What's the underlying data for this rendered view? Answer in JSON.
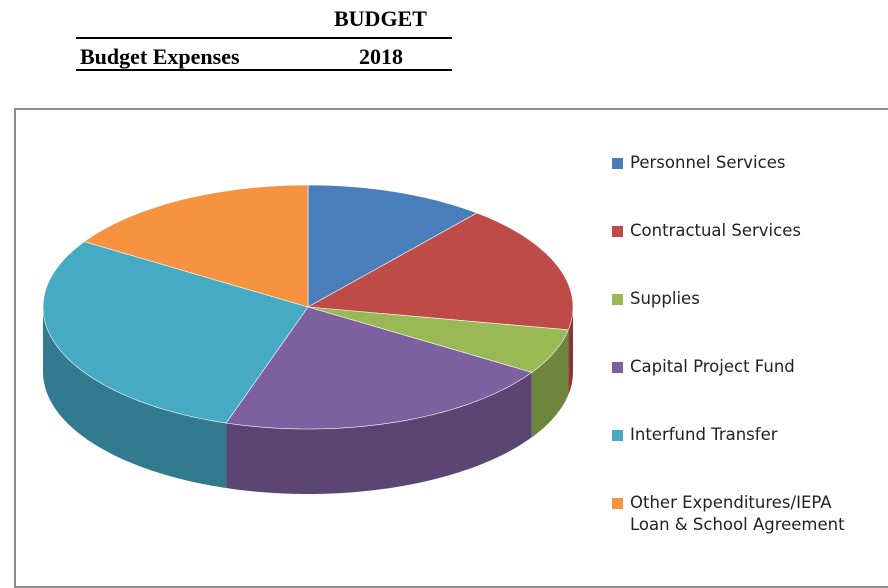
{
  "header": {
    "column_title": "BUDGET",
    "row_label": "Budget Expenses",
    "year": "2018"
  },
  "chart_data": {
    "type": "pie3d",
    "categories": [
      "Personnel Services",
      "Contractual Services",
      "Supplies",
      "Capital Project Fund",
      "Interfund Transfer",
      "Other Expenditures/IEPA Loan & School Agreement"
    ],
    "values": [
      11,
      17,
      6,
      21,
      29,
      16
    ],
    "colors": [
      "#4a7ebb",
      "#be4b48",
      "#98b954",
      "#7d60a0",
      "#46aac5",
      "#f69240"
    ],
    "legend": "right"
  }
}
